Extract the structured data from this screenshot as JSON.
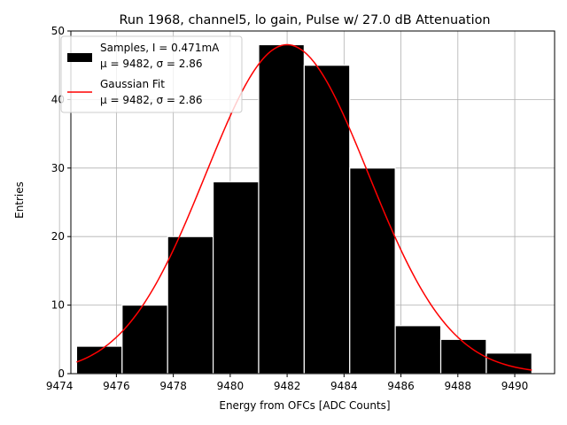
{
  "chart_data": {
    "type": "bar",
    "title": "Run 1968, channel5, lo gain, Pulse w/ 27.0 dB Attenuation",
    "xlabel": "Energy from OFCs [ADC Counts]",
    "ylabel": "Entries",
    "xlim": [
      9474.4,
      9491.4
    ],
    "ylim": [
      0,
      50
    ],
    "xticks": [
      9474,
      9476,
      9478,
      9480,
      9482,
      9484,
      9486,
      9488,
      9490
    ],
    "yticks": [
      0,
      10,
      20,
      30,
      40,
      50
    ],
    "grid": true,
    "legend_position": "upper-left",
    "histogram": {
      "name": "Samples, I = 0.471mA",
      "stats_label": "μ = 9482, σ = 2.86",
      "color": "#000000",
      "edge_color": "#ffffff",
      "bin_edges": [
        9474.6,
        9476.2,
        9477.8,
        9479.4,
        9481.0,
        9482.6,
        9484.2,
        9485.8,
        9487.4,
        9489.0,
        9490.6
      ],
      "counts": [
        4,
        10,
        20,
        28,
        48,
        45,
        30,
        7,
        5,
        3
      ]
    },
    "fit": {
      "name": "Gaussian Fit",
      "stats_label": "μ = 9482, σ = 2.86",
      "color": "#ff0000",
      "mu": 9482,
      "sigma": 2.86,
      "amplitude": 48,
      "x_range": [
        9474.6,
        9490.6
      ]
    }
  }
}
